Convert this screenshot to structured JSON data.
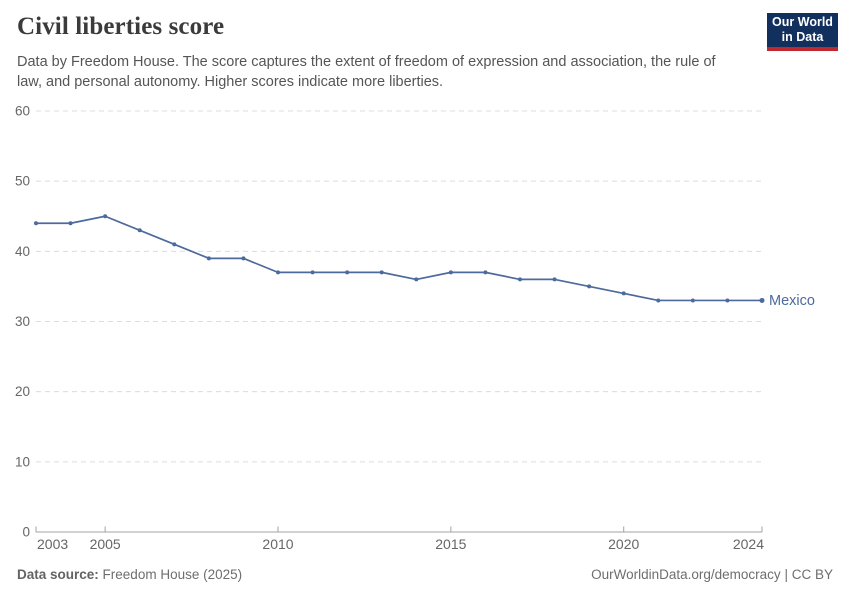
{
  "header": {
    "title": "Civil liberties score",
    "subtitle": "Data by Freedom House. The score captures the extent of freedom of expression and association, the rule of law, and personal autonomy. Higher scores indicate more liberties.",
    "logo": {
      "line1": "Our World",
      "line2": "in Data",
      "bg_color": "#12305e",
      "bar_color": "#c0282f"
    }
  },
  "chart_data": {
    "type": "line",
    "title": "Civil liberties score",
    "xlabel": "",
    "ylabel": "",
    "x": [
      2003,
      2004,
      2005,
      2006,
      2007,
      2008,
      2009,
      2010,
      2011,
      2012,
      2013,
      2014,
      2015,
      2016,
      2017,
      2018,
      2019,
      2020,
      2021,
      2022,
      2023,
      2024
    ],
    "series": [
      {
        "name": "Mexico",
        "color": "#4c6a9c",
        "values": [
          44,
          44,
          45,
          43,
          41,
          39,
          39,
          37,
          37,
          37,
          37,
          36,
          37,
          37,
          36,
          36,
          35,
          34,
          33,
          33,
          33,
          33
        ]
      }
    ],
    "ylim": [
      0,
      60
    ],
    "yticks": [
      0,
      10,
      20,
      30,
      40,
      50,
      60
    ],
    "xticks": [
      2003,
      2005,
      2010,
      2015,
      2020,
      2024
    ],
    "grid": "horizontal-dashed",
    "legend_position": "end-of-line-label",
    "grid_color": "#dcdcdc",
    "axis_color": "#a3a3a3",
    "tick_label_color": "#666666"
  },
  "footer": {
    "source_label": "Data source:",
    "source_value": "Freedom House (2025)",
    "link": "OurWorldinData.org/democracy",
    "separator": "|",
    "license": "CC BY"
  }
}
